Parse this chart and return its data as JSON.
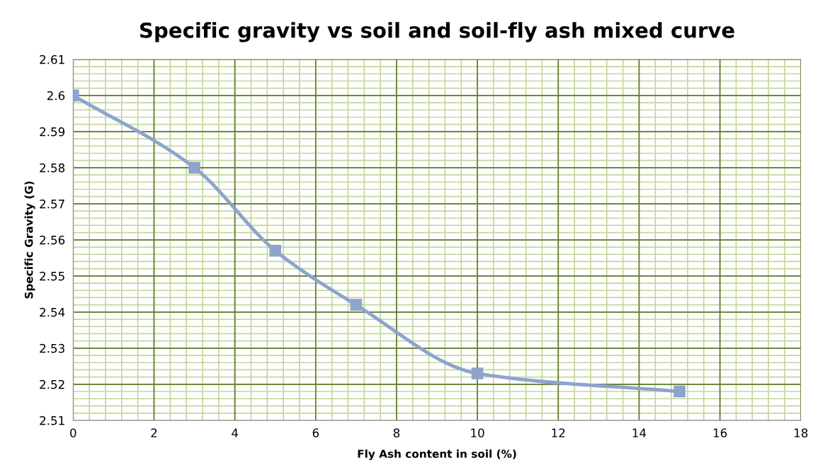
{
  "chart_data": {
    "type": "line",
    "title": "Specific gravity vs soil and soil-fly ash mixed curve",
    "xlabel": "Fly Ash content in soil (%)",
    "ylabel": "Specific Gravity (G)",
    "x": [
      0,
      3,
      5,
      7,
      10,
      15
    ],
    "series": [
      {
        "color": "#8ea4cc",
        "values": [
          2.6,
          2.58,
          2.557,
          2.542,
          2.523,
          2.518
        ]
      }
    ],
    "xlim": [
      0,
      18
    ],
    "xticks": [
      0,
      2,
      4,
      6,
      8,
      10,
      12,
      14,
      16,
      18
    ],
    "ylim": [
      2.51,
      2.61
    ],
    "yticks": [
      2.51,
      2.52,
      2.53,
      2.54,
      2.55,
      2.56,
      2.57,
      2.58,
      2.59,
      2.6,
      2.61
    ],
    "grid": true,
    "marker": "square",
    "line_style": "solid",
    "legend": false
  }
}
